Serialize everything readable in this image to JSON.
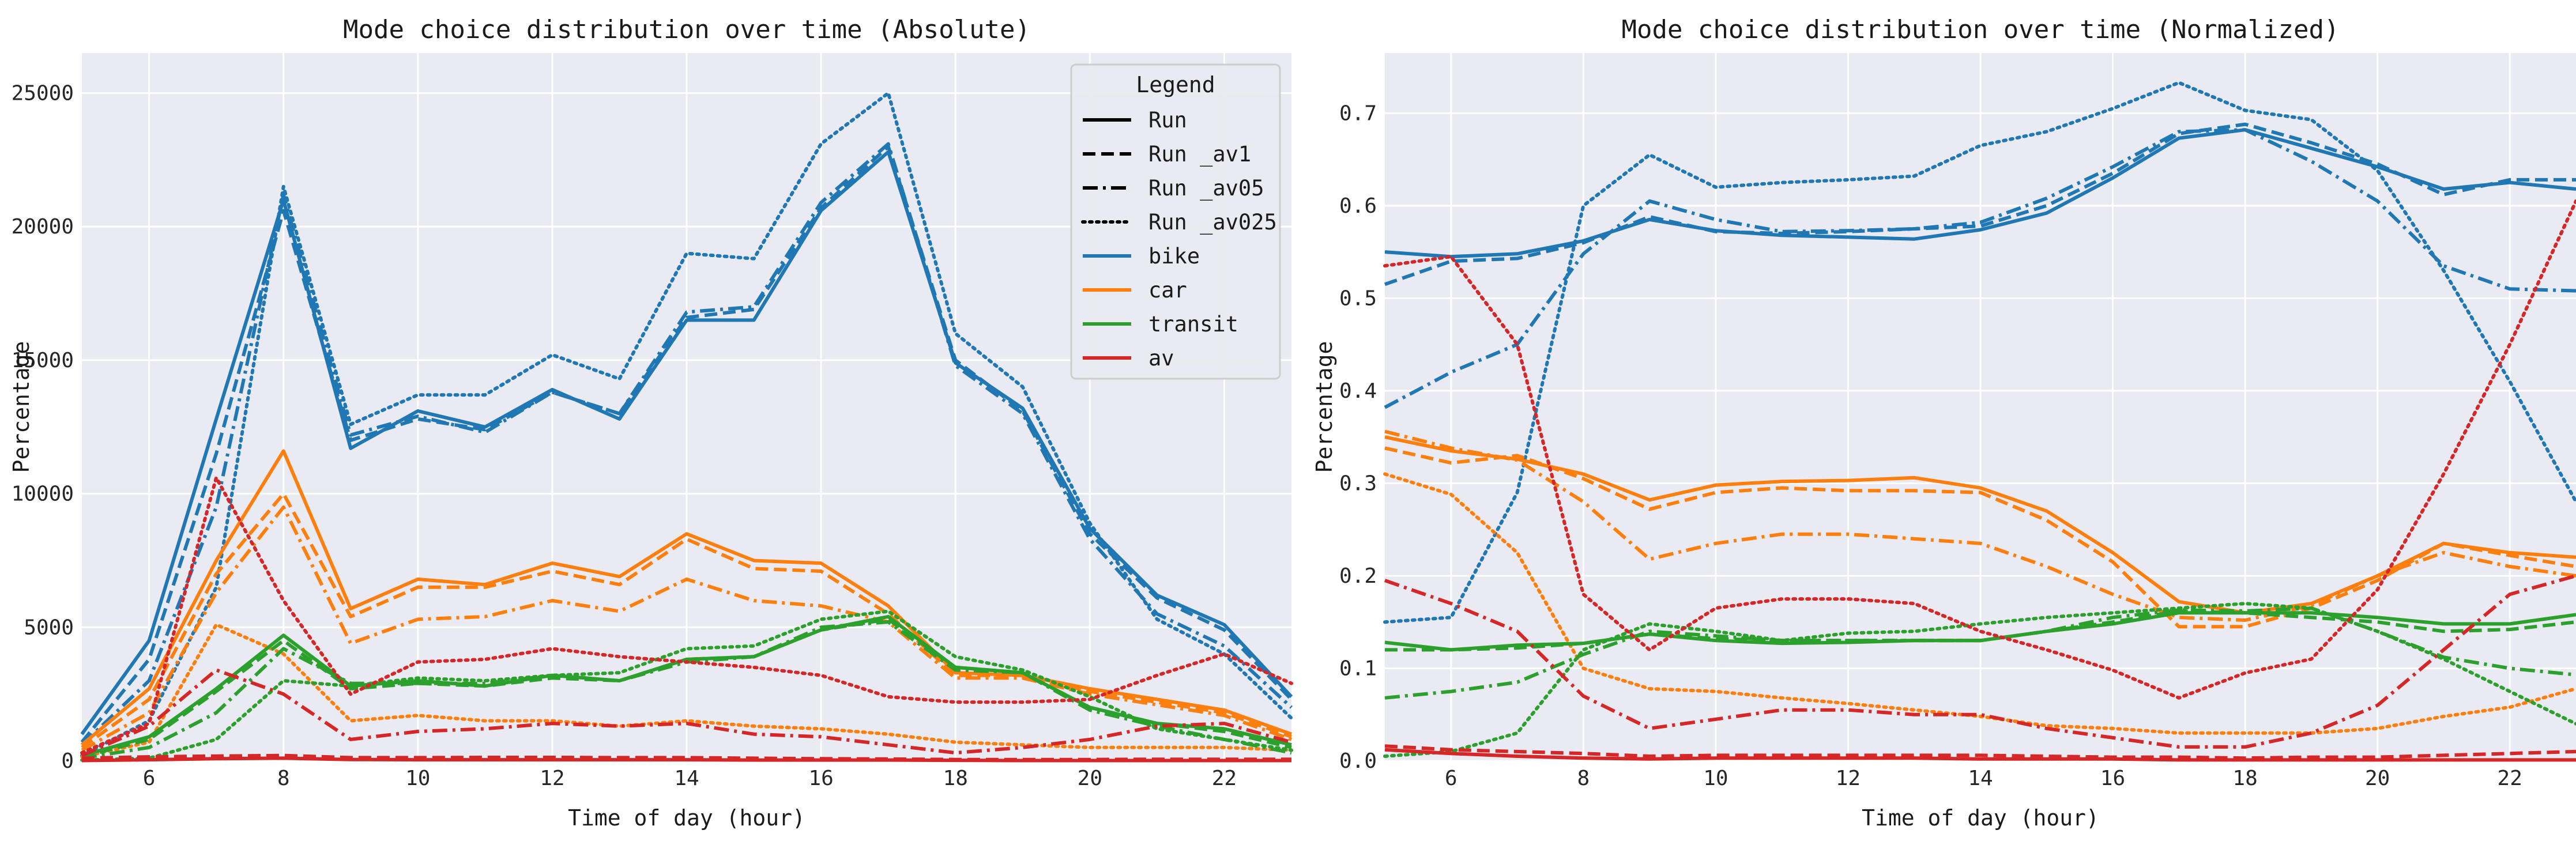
{
  "chart_data": [
    {
      "type": "line",
      "title": "Mode choice distribution over time (Absolute)",
      "xlabel": "Time of day (hour)",
      "ylabel": "Percentage",
      "xlim": [
        5,
        23
      ],
      "ylim": [
        0,
        26500
      ],
      "x_ticks": [
        6,
        8,
        10,
        12,
        14,
        16,
        18,
        20,
        22
      ],
      "y_ticks": [
        0,
        5000,
        10000,
        15000,
        20000,
        25000
      ],
      "grid": true,
      "legend": {
        "title": "Legend",
        "placement": "top-right",
        "style_entries": [
          {
            "label": "Run",
            "dash": "solid"
          },
          {
            "label": "Run _av1",
            "dash": "dashed"
          },
          {
            "label": "Run _av05",
            "dash": "dashdot"
          },
          {
            "label": "Run _av025",
            "dash": "dotted"
          }
        ],
        "color_entries": [
          {
            "label": "bike",
            "color": "#1f77b4"
          },
          {
            "label": "car",
            "color": "#ff7f0e"
          },
          {
            "label": "transit",
            "color": "#2ca02c"
          },
          {
            "label": "av",
            "color": "#d62728"
          }
        ]
      },
      "x": [
        5,
        6,
        7,
        8,
        9,
        10,
        11,
        12,
        13,
        14,
        15,
        16,
        17,
        18,
        19,
        20,
        21,
        22,
        23
      ],
      "series": [
        {
          "mode": "bike",
          "run": "Run",
          "color": "#1f77b4",
          "dash": "solid",
          "values": [
            1000,
            4500,
            12800,
            21000,
            11700,
            13100,
            12500,
            13900,
            12800,
            16500,
            16500,
            20600,
            22800,
            14900,
            13200,
            8700,
            6200,
            5100,
            2400
          ]
        },
        {
          "mode": "bike",
          "run": "Run _av1",
          "color": "#1f77b4",
          "dash": "dashed",
          "values": [
            700,
            3800,
            11500,
            20600,
            12000,
            12800,
            12400,
            13800,
            13000,
            16600,
            16900,
            20700,
            23000,
            15000,
            13100,
            8500,
            6100,
            4900,
            2300
          ]
        },
        {
          "mode": "bike",
          "run": "Run _av05",
          "color": "#1f77b4",
          "dash": "dashdot",
          "values": [
            600,
            3000,
            9500,
            21200,
            12200,
            12900,
            12300,
            13800,
            13000,
            16800,
            17000,
            20900,
            23100,
            14800,
            13000,
            8300,
            5500,
            4300,
            2000
          ]
        },
        {
          "mode": "bike",
          "run": "Run _av025",
          "color": "#1f77b4",
          "dash": "dotted",
          "values": [
            200,
            1500,
            6500,
            21500,
            12600,
            13700,
            13700,
            15200,
            14300,
            19000,
            18800,
            23100,
            25000,
            16000,
            14000,
            8900,
            5300,
            4000,
            1600
          ]
        },
        {
          "mode": "car",
          "run": "Run",
          "color": "#ff7f0e",
          "dash": "solid",
          "values": [
            600,
            2700,
            7500,
            11600,
            5700,
            6800,
            6600,
            7400,
            6900,
            8500,
            7500,
            7400,
            5800,
            3300,
            3200,
            2700,
            2300,
            1900,
            1000
          ]
        },
        {
          "mode": "car",
          "run": "Run _av1",
          "color": "#ff7f0e",
          "dash": "dashed",
          "values": [
            500,
            2300,
            7000,
            10000,
            5400,
            6500,
            6500,
            7100,
            6600,
            8300,
            7200,
            7100,
            5500,
            3200,
            3200,
            2600,
            2200,
            1800,
            900
          ]
        },
        {
          "mode": "car",
          "run": "Run _av05",
          "color": "#ff7f0e",
          "dash": "dashdot",
          "values": [
            400,
            1800,
            6300,
            9500,
            4400,
            5300,
            5400,
            6000,
            5600,
            6800,
            6000,
            5800,
            5200,
            3100,
            3100,
            2500,
            2100,
            1700,
            800
          ]
        },
        {
          "mode": "car",
          "run": "Run _av025",
          "color": "#ff7f0e",
          "dash": "dotted",
          "values": [
            150,
            700,
            5100,
            4000,
            1500,
            1700,
            1500,
            1500,
            1300,
            1500,
            1300,
            1200,
            1000,
            700,
            600,
            500,
            500,
            500,
            400
          ]
        },
        {
          "mode": "transit",
          "run": "Run",
          "color": "#2ca02c",
          "dash": "solid",
          "values": [
            200,
            900,
            2700,
            4700,
            2800,
            3000,
            2800,
            3200,
            3000,
            3800,
            3900,
            4900,
            5400,
            3500,
            3300,
            2000,
            1400,
            1200,
            600
          ]
        },
        {
          "mode": "transit",
          "run": "Run _av1",
          "color": "#2ca02c",
          "dash": "dashed",
          "values": [
            150,
            800,
            2600,
            4500,
            2700,
            2900,
            2800,
            3100,
            3000,
            3800,
            3900,
            4900,
            5300,
            3500,
            3300,
            2000,
            1400,
            1100,
            500
          ]
        },
        {
          "mode": "transit",
          "run": "Run _av05",
          "color": "#2ca02c",
          "dash": "dashdot",
          "values": [
            100,
            500,
            1800,
            4200,
            2900,
            2900,
            2900,
            3200,
            3000,
            3700,
            3900,
            5000,
            5200,
            3400,
            3300,
            1900,
            1300,
            800,
            300
          ]
        },
        {
          "mode": "transit",
          "run": "Run _av025",
          "color": "#2ca02c",
          "dash": "dotted",
          "values": [
            30,
            100,
            800,
            3000,
            2800,
            3100,
            3000,
            3200,
            3300,
            4200,
            4300,
            5300,
            5600,
            3900,
            3400,
            2400,
            1200,
            800,
            400
          ]
        },
        {
          "mode": "av",
          "run": "Run",
          "color": "#d62728",
          "dash": "solid",
          "values": [
            10,
            40,
            80,
            100,
            50,
            40,
            40,
            40,
            40,
            40,
            30,
            30,
            30,
            20,
            10,
            10,
            10,
            10,
            10
          ]
        },
        {
          "mode": "av",
          "run": "Run _av1",
          "color": "#d62728",
          "dash": "dashed",
          "values": [
            100,
            150,
            180,
            200,
            120,
            120,
            130,
            130,
            120,
            120,
            100,
            80,
            70,
            50,
            50,
            50,
            60,
            60,
            60
          ]
        },
        {
          "mode": "av",
          "run": "Run _av05",
          "color": "#d62728",
          "dash": "dashdot",
          "values": [
            200,
            1300,
            3400,
            2500,
            800,
            1100,
            1200,
            1400,
            1300,
            1400,
            1000,
            900,
            600,
            300,
            500,
            800,
            1300,
            1400,
            700
          ]
        },
        {
          "mode": "av",
          "run": "Run _av025",
          "color": "#d62728",
          "dash": "dotted",
          "values": [
            300,
            1400,
            10600,
            6000,
            2500,
            3700,
            3800,
            4200,
            3900,
            3700,
            3500,
            3200,
            2400,
            2200,
            2200,
            2300,
            3200,
            4000,
            2900
          ]
        }
      ]
    },
    {
      "type": "line",
      "title": "Mode choice distribution over time (Normalized)",
      "xlabel": "Time of day (hour)",
      "ylabel": "Percentage",
      "xlim": [
        5,
        23
      ],
      "ylim": [
        0,
        0.765
      ],
      "x_ticks": [
        6,
        8,
        10,
        12,
        14,
        16,
        18,
        20,
        22
      ],
      "y_ticks": [
        0.0,
        0.1,
        0.2,
        0.3,
        0.4,
        0.5,
        0.6,
        0.7
      ],
      "y_tick_labels": [
        "0.0",
        "0.1",
        "0.2",
        "0.3",
        "0.4",
        "0.5",
        "0.6",
        "0.7"
      ],
      "grid": true,
      "x": [
        5,
        6,
        7,
        8,
        9,
        10,
        11,
        12,
        13,
        14,
        15,
        16,
        17,
        18,
        19,
        20,
        21,
        22,
        23
      ],
      "series": [
        {
          "mode": "bike",
          "run": "Run",
          "color": "#1f77b4",
          "dash": "solid",
          "values": [
            0.55,
            0.545,
            0.548,
            0.562,
            0.585,
            0.573,
            0.568,
            0.566,
            0.564,
            0.574,
            0.592,
            0.63,
            0.673,
            0.682,
            0.662,
            0.642,
            0.618,
            0.625,
            0.618
          ]
        },
        {
          "mode": "bike",
          "run": "Run _av1",
          "color": "#1f77b4",
          "dash": "dashed",
          "values": [
            0.515,
            0.54,
            0.543,
            0.56,
            0.588,
            0.572,
            0.57,
            0.572,
            0.575,
            0.578,
            0.6,
            0.635,
            0.678,
            0.688,
            0.668,
            0.645,
            0.612,
            0.628,
            0.628
          ]
        },
        {
          "mode": "bike",
          "run": "Run _av05",
          "color": "#1f77b4",
          "dash": "dashdot",
          "values": [
            0.382,
            0.42,
            0.45,
            0.548,
            0.605,
            0.585,
            0.572,
            0.573,
            0.575,
            0.582,
            0.608,
            0.642,
            0.68,
            0.682,
            0.648,
            0.605,
            0.535,
            0.51,
            0.508
          ]
        },
        {
          "mode": "bike",
          "run": "Run _av025",
          "color": "#1f77b4",
          "dash": "dotted",
          "values": [
            0.15,
            0.155,
            0.29,
            0.6,
            0.655,
            0.62,
            0.625,
            0.628,
            0.632,
            0.665,
            0.68,
            0.705,
            0.733,
            0.703,
            0.693,
            0.638,
            0.53,
            0.41,
            0.28
          ]
        },
        {
          "mode": "car",
          "run": "Run",
          "color": "#ff7f0e",
          "dash": "solid",
          "values": [
            0.35,
            0.335,
            0.326,
            0.31,
            0.282,
            0.298,
            0.302,
            0.303,
            0.306,
            0.295,
            0.27,
            0.225,
            0.172,
            0.16,
            0.17,
            0.2,
            0.235,
            0.225,
            0.22
          ]
        },
        {
          "mode": "car",
          "run": "Run _av1",
          "color": "#ff7f0e",
          "dash": "dashed",
          "values": [
            0.338,
            0.322,
            0.33,
            0.305,
            0.272,
            0.29,
            0.295,
            0.292,
            0.292,
            0.29,
            0.26,
            0.215,
            0.145,
            0.145,
            0.165,
            0.195,
            0.235,
            0.222,
            0.21
          ]
        },
        {
          "mode": "car",
          "run": "Run _av05",
          "color": "#ff7f0e",
          "dash": "dashdot",
          "values": [
            0.356,
            0.338,
            0.325,
            0.28,
            0.218,
            0.235,
            0.245,
            0.245,
            0.24,
            0.235,
            0.21,
            0.18,
            0.155,
            0.152,
            0.168,
            0.2,
            0.225,
            0.21,
            0.2
          ]
        },
        {
          "mode": "car",
          "run": "Run _av025",
          "color": "#ff7f0e",
          "dash": "dotted",
          "values": [
            0.31,
            0.288,
            0.225,
            0.1,
            0.078,
            0.075,
            0.068,
            0.062,
            0.055,
            0.048,
            0.038,
            0.035,
            0.03,
            0.03,
            0.03,
            0.035,
            0.048,
            0.058,
            0.078
          ]
        },
        {
          "mode": "transit",
          "run": "Run",
          "color": "#2ca02c",
          "dash": "solid",
          "values": [
            0.128,
            0.12,
            0.125,
            0.127,
            0.137,
            0.13,
            0.127,
            0.128,
            0.13,
            0.13,
            0.14,
            0.148,
            0.16,
            0.16,
            0.16,
            0.155,
            0.148,
            0.148,
            0.158
          ]
        },
        {
          "mode": "transit",
          "run": "Run _av1",
          "color": "#2ca02c",
          "dash": "dashed",
          "values": [
            0.12,
            0.12,
            0.122,
            0.127,
            0.137,
            0.132,
            0.13,
            0.13,
            0.13,
            0.13,
            0.14,
            0.15,
            0.162,
            0.16,
            0.155,
            0.15,
            0.14,
            0.142,
            0.15
          ]
        },
        {
          "mode": "transit",
          "run": "Run _av05",
          "color": "#2ca02c",
          "dash": "dashdot",
          "values": [
            0.068,
            0.075,
            0.085,
            0.115,
            0.14,
            0.135,
            0.13,
            0.13,
            0.13,
            0.13,
            0.14,
            0.155,
            0.163,
            0.162,
            0.165,
            0.14,
            0.112,
            0.1,
            0.093
          ]
        },
        {
          "mode": "transit",
          "run": "Run _av025",
          "color": "#2ca02c",
          "dash": "dotted",
          "values": [
            0.005,
            0.01,
            0.03,
            0.12,
            0.148,
            0.14,
            0.13,
            0.138,
            0.14,
            0.148,
            0.155,
            0.16,
            0.165,
            0.17,
            0.165,
            0.14,
            0.11,
            0.075,
            0.04
          ]
        },
        {
          "mode": "av",
          "run": "Run",
          "color": "#d62728",
          "dash": "solid",
          "values": [
            0.012,
            0.008,
            0.005,
            0.003,
            0.002,
            0.003,
            0.003,
            0.003,
            0.003,
            0.002,
            0.002,
            0.002,
            0.001,
            0.001,
            0.001,
            0.001,
            0.001,
            0.001,
            0.001
          ]
        },
        {
          "mode": "av",
          "run": "Run _av1",
          "color": "#d62728",
          "dash": "dashed",
          "values": [
            0.016,
            0.012,
            0.01,
            0.008,
            0.005,
            0.006,
            0.006,
            0.006,
            0.006,
            0.006,
            0.005,
            0.004,
            0.004,
            0.003,
            0.004,
            0.004,
            0.006,
            0.008,
            0.01
          ]
        },
        {
          "mode": "av",
          "run": "Run _av05",
          "color": "#d62728",
          "dash": "dashdot",
          "values": [
            0.195,
            0.17,
            0.14,
            0.07,
            0.035,
            0.045,
            0.055,
            0.055,
            0.05,
            0.05,
            0.035,
            0.025,
            0.015,
            0.015,
            0.03,
            0.06,
            0.12,
            0.18,
            0.2
          ]
        },
        {
          "mode": "av",
          "run": "Run _av025",
          "color": "#d62728",
          "dash": "dotted",
          "values": [
            0.535,
            0.545,
            0.45,
            0.18,
            0.12,
            0.165,
            0.175,
            0.175,
            0.17,
            0.14,
            0.12,
            0.098,
            0.068,
            0.095,
            0.11,
            0.185,
            0.31,
            0.45,
            0.605
          ]
        }
      ]
    }
  ]
}
